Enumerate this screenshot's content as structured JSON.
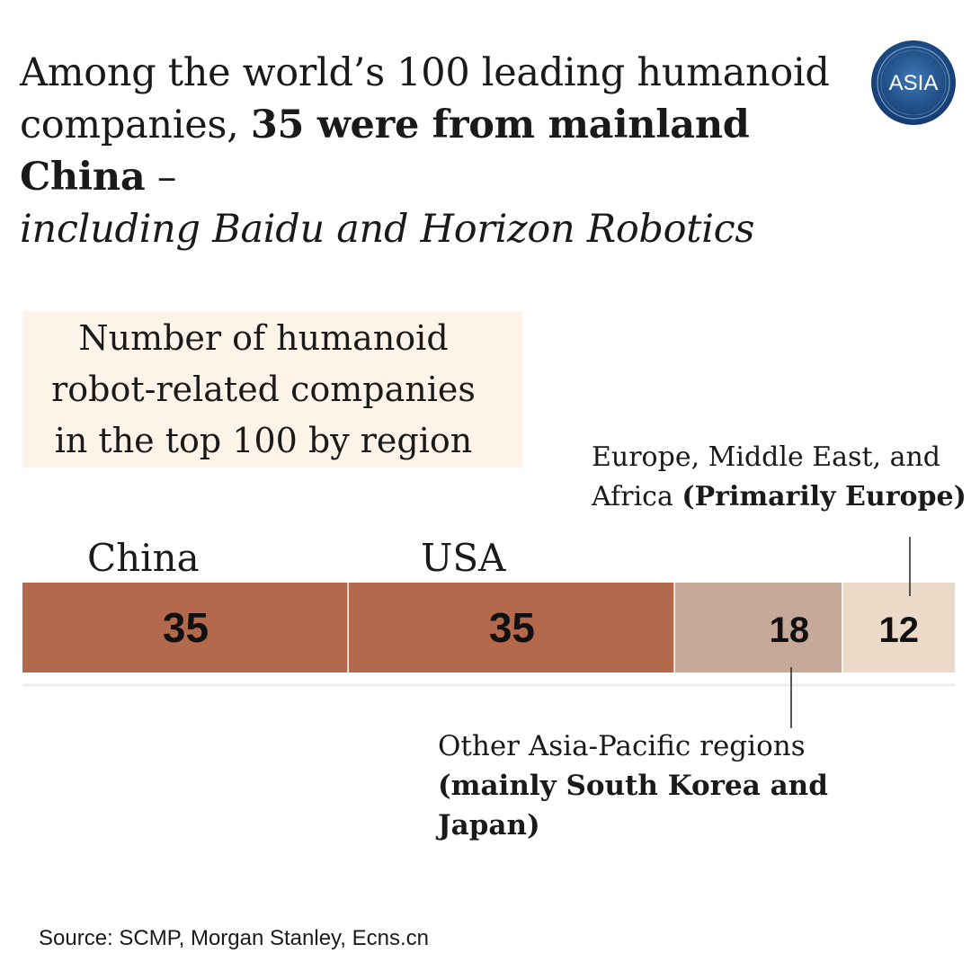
{
  "headline": {
    "line1": "Among the world’s 100 leading humanoid",
    "line2_regular": "companies, ",
    "line2_bold": "35 were from mainland China",
    "line2_dash": " –",
    "line3_italic": "including Baidu and Horizon Robotics"
  },
  "logo": {
    "text": "ASIA",
    "color": "#1f4f8c"
  },
  "subtitle": {
    "line1": "Number of humanoid",
    "line2": "robot-related companies",
    "line3": "in the top 100 by region"
  },
  "chart_data": {
    "type": "bar",
    "orientation": "horizontal-stacked",
    "total": 100,
    "segments": [
      {
        "category": "China",
        "value": 35,
        "color": "#b5694c",
        "value_label": "35"
      },
      {
        "category": "USA",
        "value": 35,
        "color": "#b5694c",
        "value_label": "35"
      },
      {
        "category": "Other Asia-Pacific regions",
        "value": 18,
        "color": "#c7a99a",
        "value_label": "18"
      },
      {
        "category": "Europe, Middle East, and Africa",
        "value": 12,
        "color": "#ecdac8",
        "value_label": "12"
      }
    ],
    "category_labels": {
      "china": "China",
      "usa": "USA"
    },
    "annotations": {
      "emea": {
        "line1": "Europe, Middle East, and",
        "line2_regular": "Africa ",
        "line2_bold": "(Primarily Europe)"
      },
      "apac": {
        "line1": "Other Asia-Pacific regions",
        "line2_bold": "(mainly South Korea and",
        "line3_bold": "Japan)"
      }
    }
  },
  "source": "Source: SCMP, Morgan Stanley, Ecns.cn",
  "colors": {
    "bar_primary": "#b5694c",
    "bar_secondary": "#c7a99a",
    "bar_tertiary": "#ecdac8",
    "subtitle_bg": "#fdf3e8"
  }
}
